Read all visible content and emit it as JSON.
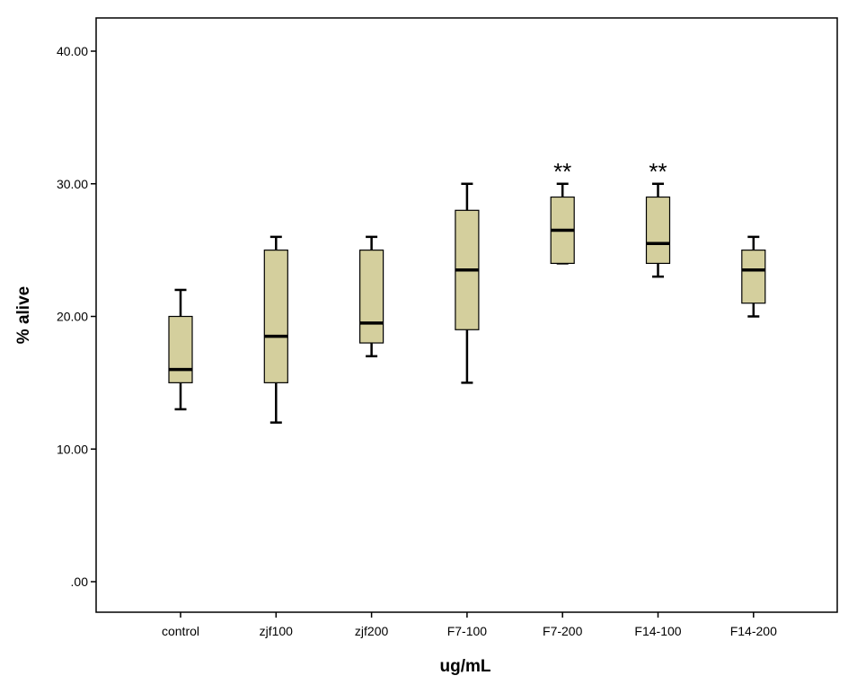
{
  "chart_data": {
    "type": "boxplot",
    "xlabel": "ug/mL",
    "ylabel": "% alive",
    "ylim": [
      -2.3,
      44.0
    ],
    "yticks": [
      0,
      10,
      20,
      30,
      40
    ],
    "ytick_labels": [
      ".00",
      "10.00",
      "20.00",
      "30.00",
      "40.00"
    ],
    "categories": [
      "control",
      "zjf100",
      "zjf200",
      "F7-100",
      "F7-200",
      "F14-100",
      "F14-200"
    ],
    "boxes": [
      {
        "category": "control",
        "min": 13,
        "q1": 15,
        "median": 16,
        "q3": 20,
        "max": 22,
        "annotation": ""
      },
      {
        "category": "zjf100",
        "min": 12,
        "q1": 15,
        "median": 18.5,
        "q3": 25,
        "max": 26,
        "annotation": ""
      },
      {
        "category": "zjf200",
        "min": 17,
        "q1": 18,
        "median": 19.5,
        "q3": 25,
        "max": 26,
        "annotation": ""
      },
      {
        "category": "F7-100",
        "min": 15,
        "q1": 19,
        "median": 23.5,
        "q3": 28,
        "max": 30,
        "annotation": ""
      },
      {
        "category": "F7-200",
        "min": 24,
        "q1": 24,
        "median": 26.5,
        "q3": 29,
        "max": 30,
        "annotation": "**"
      },
      {
        "category": "F14-100",
        "min": 23,
        "q1": 24,
        "median": 25.5,
        "q3": 29,
        "max": 30,
        "annotation": "**"
      },
      {
        "category": "F14-200",
        "min": 20,
        "q1": 21,
        "median": 23.5,
        "q3": 25,
        "max": 26,
        "annotation": ""
      }
    ],
    "colors": {
      "box_fill": "#d4cf9d",
      "box_stroke": "#000000",
      "background": "#ffffff"
    }
  }
}
